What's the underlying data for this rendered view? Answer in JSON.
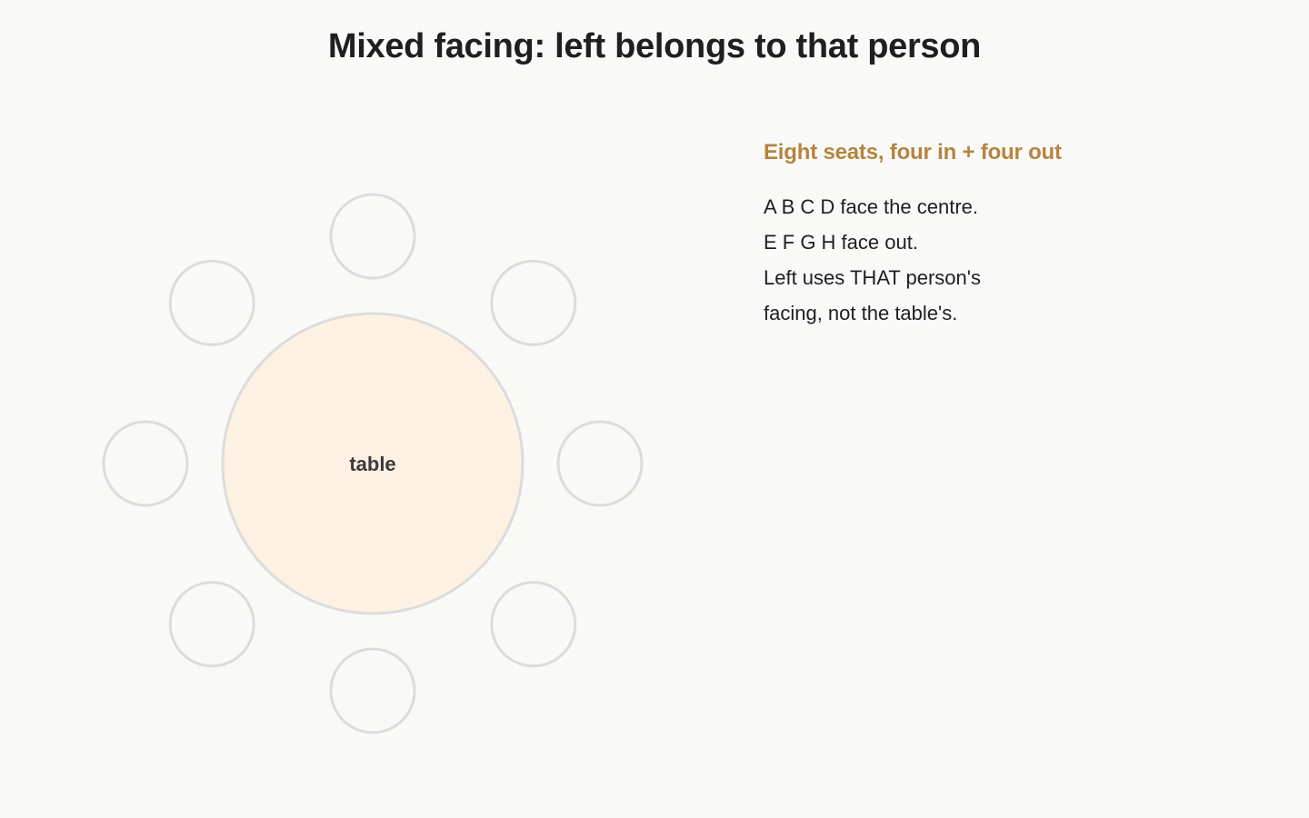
{
  "title": "Mixed facing: left belongs to that person",
  "diagram": {
    "table_label": "table",
    "seat_count": 8,
    "colors": {
      "table_fill": "#fdf1e4",
      "outline": "#dcdcdb",
      "seat_fill": "#f9f9f8",
      "accent": "#b5843e"
    }
  },
  "panel": {
    "heading": "Eight seats, four in + four out",
    "lines": [
      "A B C D face the centre.",
      "E F G H face out.",
      "Left uses THAT person's",
      "facing, not the table's."
    ]
  }
}
